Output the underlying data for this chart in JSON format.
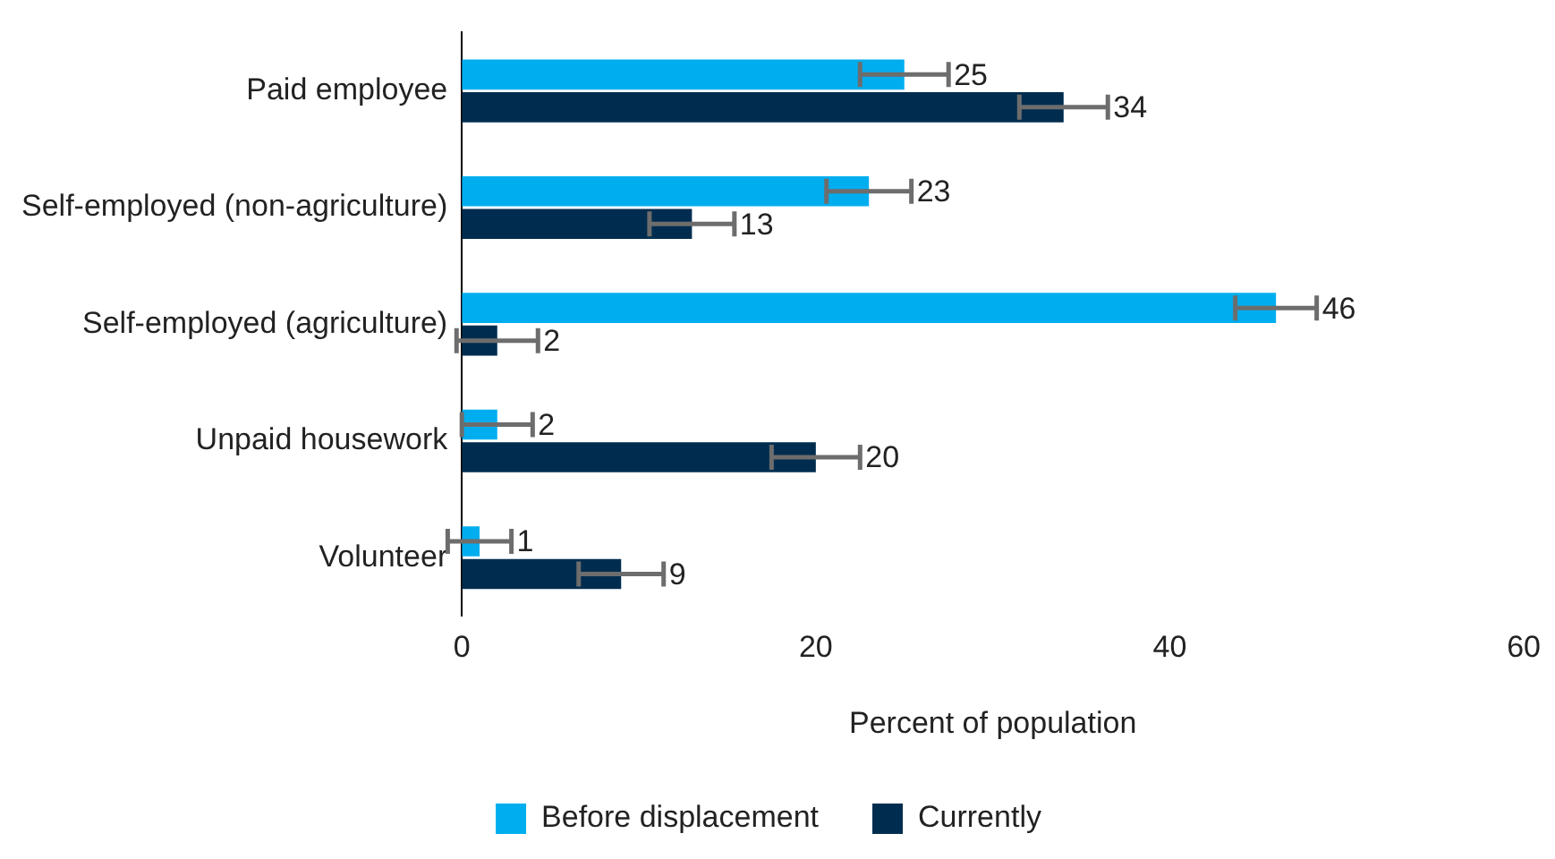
{
  "chart_data": {
    "type": "bar",
    "orientation": "horizontal",
    "categories": [
      "Paid employee",
      "Self-employed (non-agriculture)",
      "Self-employed (agriculture)",
      "Unpaid housework",
      "Volunteer"
    ],
    "series": [
      {
        "name": "Before displacement",
        "color": "#00aeef",
        "values": [
          25,
          23,
          46,
          2,
          1
        ],
        "errors": [
          2.5,
          2.4,
          2.3,
          2,
          1.8
        ]
      },
      {
        "name": "Currently",
        "color": "#002d4f",
        "values": [
          34,
          13,
          2,
          20,
          9
        ],
        "errors": [
          2.5,
          2.4,
          2.3,
          2.5,
          2.4
        ]
      }
    ],
    "xlim": [
      0,
      60
    ],
    "xticks": [
      0,
      20,
      40,
      60
    ],
    "xlabel": "Percent of population",
    "grid": false,
    "legend": "bottom",
    "data_labels": true
  }
}
